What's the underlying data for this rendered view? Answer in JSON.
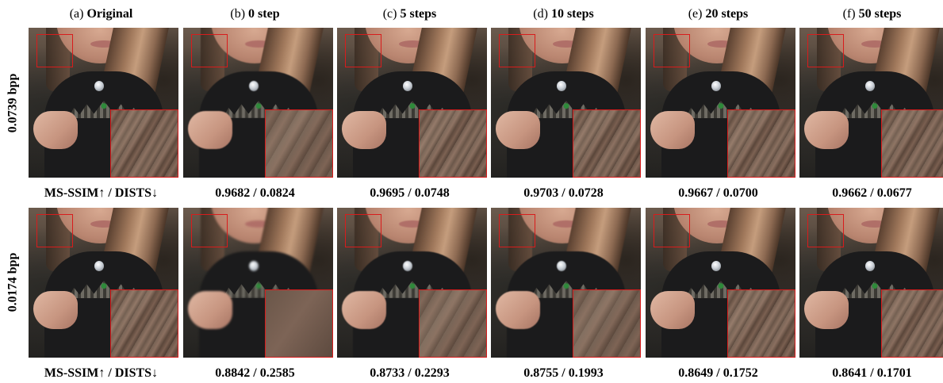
{
  "columns": [
    {
      "prefix": "(a)",
      "label": "Original"
    },
    {
      "prefix": "(b)",
      "label": "0 step"
    },
    {
      "prefix": "(c)",
      "label": "5 steps"
    },
    {
      "prefix": "(d)",
      "label": "10 steps"
    },
    {
      "prefix": "(e)",
      "label": "20 steps"
    },
    {
      "prefix": "(f)",
      "label": "50 steps"
    }
  ],
  "rows": [
    {
      "bitrate": "0.0739 bpp",
      "metric_label": "MS-SSIM↑ / DISTS↓",
      "metrics": [
        "0.9682 / 0.0824",
        "0.9695 / 0.0748",
        "0.9703 / 0.0728",
        "0.9667 / 0.0700",
        "0.9662 / 0.0677"
      ]
    },
    {
      "bitrate": "0.0174 bpp",
      "metric_label": "MS-SSIM↑ / DISTS↓",
      "metrics": [
        "0.8842 / 0.2585",
        "0.8733 / 0.2293",
        "0.8755 / 0.1993",
        "0.8649 / 0.1752",
        "0.8641 / 0.1701"
      ]
    }
  ],
  "colors": {
    "roi_box": "#d81c1c"
  }
}
